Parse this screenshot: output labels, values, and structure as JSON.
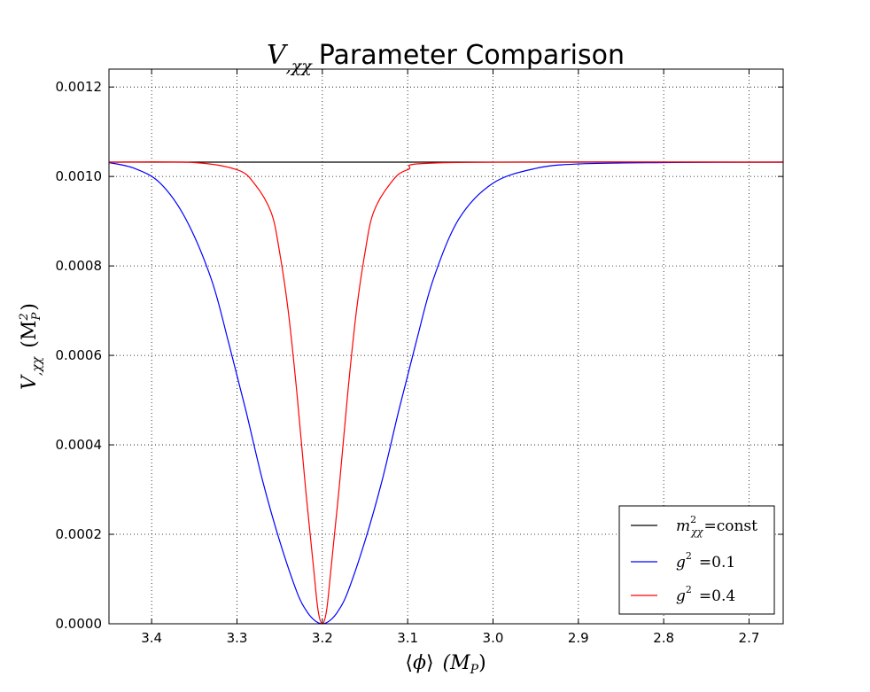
{
  "chart_data": {
    "type": "line",
    "title_math": "V",
    "title_math_sub": ",χχ",
    "title_text": "Parameter Comparison",
    "xlabel_pre": "⟨",
    "xlabel_var": "ϕ",
    "xlabel_post": "⟩",
    "xlabel_unit": "(M",
    "xlabel_unit_sub": "P",
    "xlabel_unit_end": ")",
    "ylabel_var": "V",
    "ylabel_sub": ",χχ",
    "ylabel_unit": "(M",
    "ylabel_unit_sup": "2",
    "ylabel_unit_sub": "P",
    "ylabel_unit_end": ")",
    "xlim": [
      3.45,
      2.66
    ],
    "ylim": [
      0.0,
      0.00124
    ],
    "x_reversed": true,
    "grid": true,
    "legend_position": "lower-right",
    "xticks": [
      3.4,
      3.3,
      3.2,
      3.1,
      3.0,
      2.9,
      2.8,
      2.7
    ],
    "xtick_labels": [
      "3.4",
      "3.3",
      "3.2",
      "3.1",
      "3.0",
      "2.9",
      "2.8",
      "2.7"
    ],
    "yticks": [
      0.0,
      0.0002,
      0.0004,
      0.0006,
      0.0008,
      0.001,
      0.0012
    ],
    "ytick_labels": [
      "0.0000",
      "0.0002",
      "0.0004",
      "0.0006",
      "0.0008",
      "0.0010",
      "0.0012"
    ],
    "series": [
      {
        "name_var": "m",
        "name_sup": "2",
        "name_sub": "χχ",
        "name_rest": "=const",
        "color": "#000000",
        "x": [
          3.45,
          2.66
        ],
        "y": [
          0.001032,
          0.001032
        ]
      },
      {
        "name_var": "g",
        "name_sup": "2",
        "name_sub": "",
        "name_rest": "=0.1",
        "color": "#0000ff",
        "x": [
          3.45,
          3.42,
          3.39,
          3.36,
          3.33,
          3.31,
          3.29,
          3.27,
          3.25,
          3.23,
          3.22,
          3.21,
          3.2,
          3.19,
          3.18,
          3.17,
          3.15,
          3.13,
          3.11,
          3.09,
          3.07,
          3.04,
          3.0,
          2.95,
          2.9,
          2.8,
          2.66
        ],
        "y": [
          0.001031,
          0.001018,
          0.000985,
          0.000905,
          0.00077,
          0.00063,
          0.00048,
          0.00032,
          0.000185,
          7.2e-05,
          3.3e-05,
          9e-06,
          0.0,
          9e-06,
          3.3e-05,
          7.2e-05,
          0.000185,
          0.00032,
          0.00048,
          0.00063,
          0.00077,
          0.000905,
          0.000985,
          0.001018,
          0.001028,
          0.001031,
          0.001032
        ]
      },
      {
        "name_var": "g",
        "name_sup": "2",
        "name_sub": "",
        "name_rest": "=0.4",
        "color": "#ff0000",
        "x": [
          3.45,
          3.35,
          3.3,
          3.28,
          3.26,
          3.25,
          3.24,
          3.23,
          3.22,
          3.21,
          3.205,
          3.2,
          3.195,
          3.19,
          3.18,
          3.17,
          3.16,
          3.15,
          3.14,
          3.12,
          3.1,
          3.05,
          2.66
        ],
        "y": [
          0.001032,
          0.001031,
          0.001015,
          0.000985,
          0.00092,
          0.00083,
          0.0007,
          0.00052,
          0.00031,
          0.00012,
          3e-05,
          0.0,
          3e-05,
          0.00012,
          0.00031,
          0.00052,
          0.0007,
          0.00083,
          0.00092,
          0.000985,
          0.001015,
          0.001031,
          0.001032
        ]
      }
    ]
  }
}
